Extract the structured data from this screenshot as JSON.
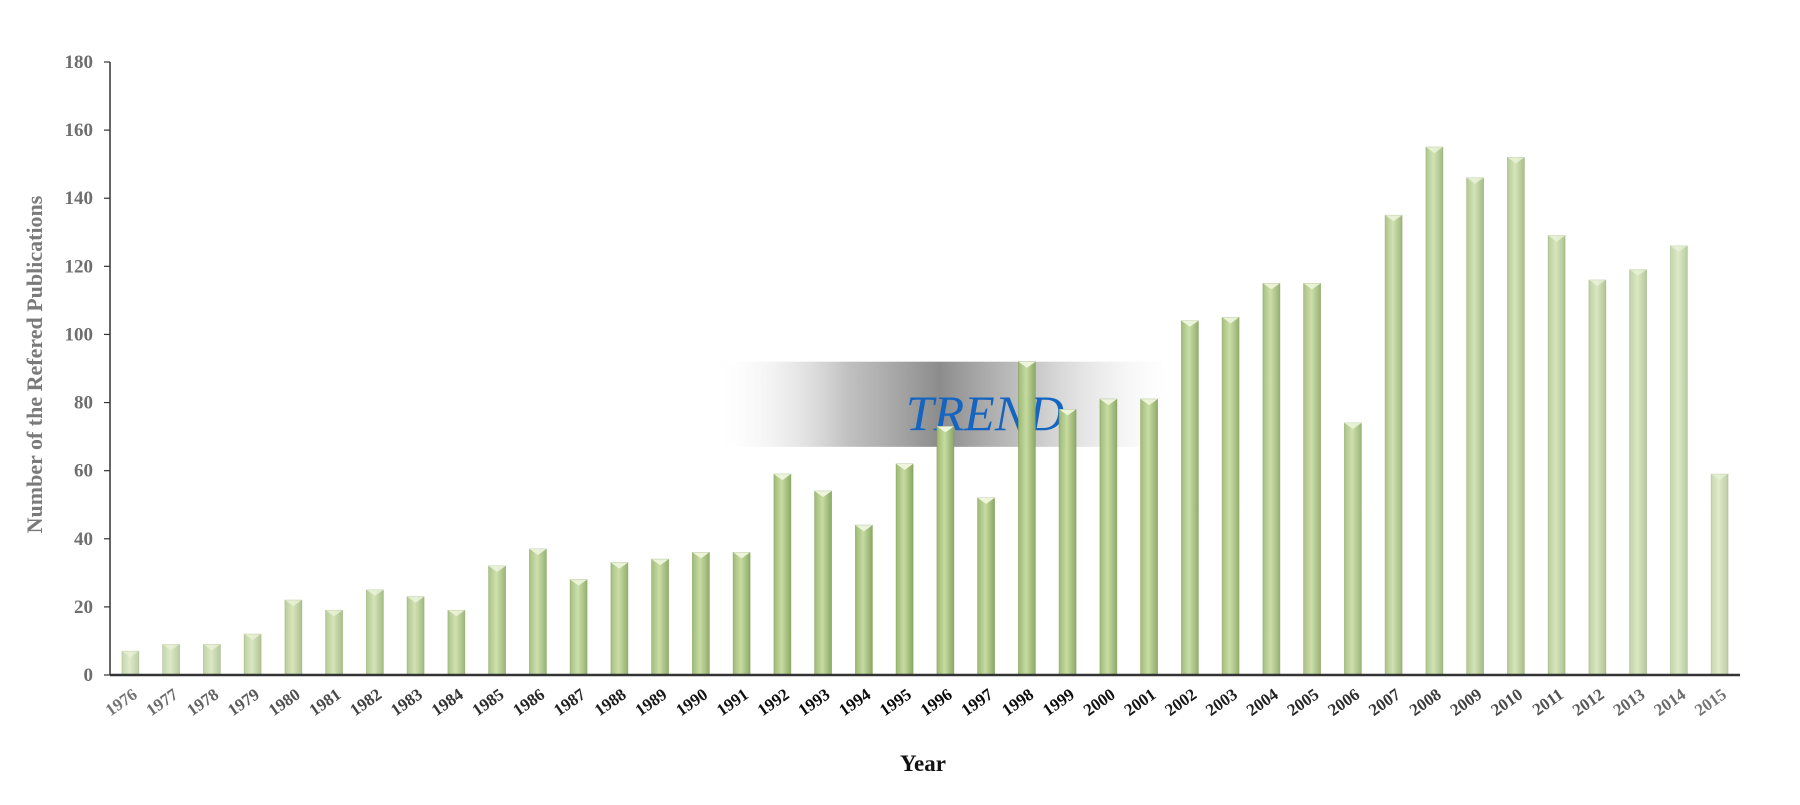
{
  "chart_data": {
    "type": "bar",
    "title": "",
    "xlabel": "Year",
    "ylabel": "Number of the Refered  Publications",
    "ylim": [
      0,
      180
    ],
    "yticks": [
      0,
      20,
      40,
      60,
      80,
      100,
      120,
      140,
      160,
      180
    ],
    "grid": false,
    "categories": [
      "1976",
      "1977",
      "1978",
      "1979",
      "1980",
      "1981",
      "1982",
      "1983",
      "1984",
      "1985",
      "1986",
      "1987",
      "1988",
      "1989",
      "1990",
      "1991",
      "1992",
      "1993",
      "1994",
      "1995",
      "1996",
      "1997",
      "1998",
      "1999",
      "2000",
      "2001",
      "2002",
      "2003",
      "2004",
      "2005",
      "2006",
      "2007",
      "2008",
      "2009",
      "2010",
      "2011",
      "2012",
      "2013",
      "2014",
      "2015"
    ],
    "values": [
      7,
      9,
      9,
      12,
      22,
      19,
      25,
      23,
      19,
      32,
      37,
      28,
      33,
      34,
      36,
      36,
      59,
      54,
      44,
      62,
      73,
      52,
      92,
      78,
      81,
      81,
      104,
      105,
      115,
      115,
      74,
      135,
      155,
      146,
      152,
      129,
      116,
      119,
      126,
      59
    ],
    "annotation": "TREND",
    "colors": {
      "bar_light": "#d6e4bd",
      "bar_mid": "#b5cf8e",
      "bar_dark": "#7f9c55",
      "axis": "#333333",
      "ytick_text": "#6e6e6e",
      "annotation_text": "#1565c0"
    }
  }
}
